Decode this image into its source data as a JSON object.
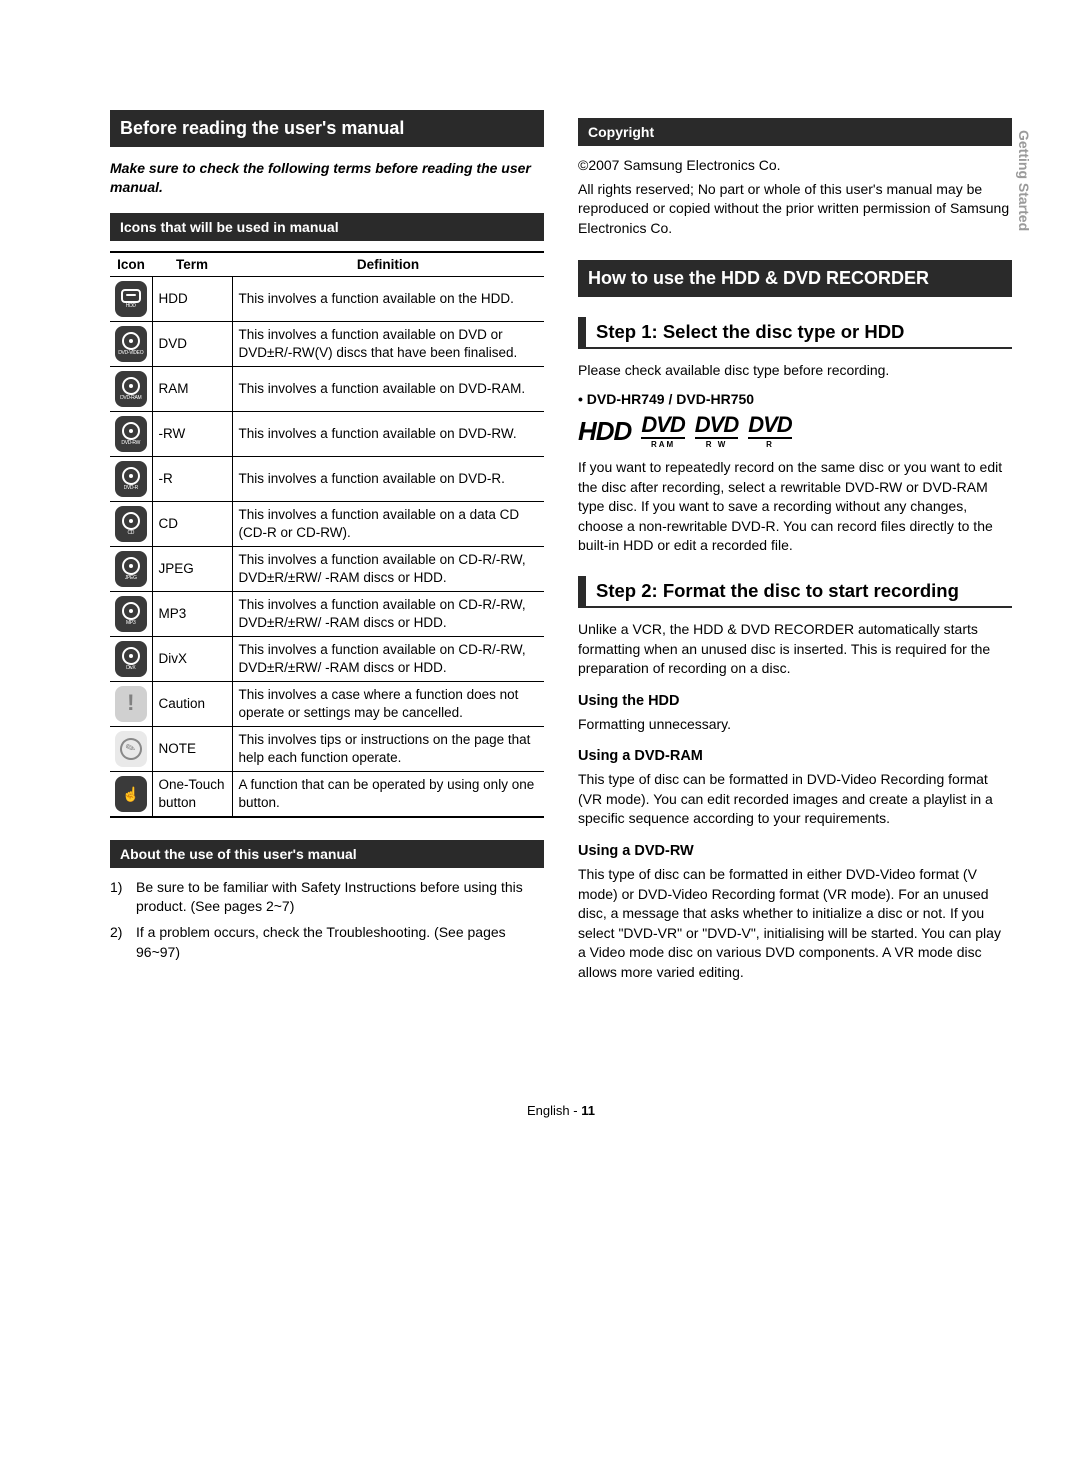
{
  "sideTab": "Getting Started",
  "left": {
    "title": "Before reading the user's manual",
    "intro": "Make sure to check the following terms before reading the user manual.",
    "iconsBar": "Icons that will be used in manual",
    "tableHead": {
      "icon": "Icon",
      "term": "Term",
      "def": "Definition"
    },
    "rows": [
      {
        "badge": "HDD",
        "term": "HDD",
        "def": "This involves a function available on the HDD."
      },
      {
        "badge": "DVD-VIDEO",
        "term": "DVD",
        "def": "This involves a function available on DVD or DVD±R/-RW(V) discs that have been finalised."
      },
      {
        "badge": "DVD-RAM",
        "term": "RAM",
        "def": "This involves a function available on DVD-RAM."
      },
      {
        "badge": "DVD-RW",
        "term": "-RW",
        "def": "This involves a function available on DVD-RW."
      },
      {
        "badge": "DVD-R",
        "term": "-R",
        "def": "This involves a function available on DVD-R."
      },
      {
        "badge": "CD",
        "term": "CD",
        "def": "This involves a function available on a data CD (CD-R or CD-RW)."
      },
      {
        "badge": "JPEG",
        "term": "JPEG",
        "def": "This involves a function available on CD-R/-RW, DVD±R/±RW/ -RAM discs or HDD."
      },
      {
        "badge": "MP3",
        "term": "MP3",
        "def": "This involves a function available on CD-R/-RW, DVD±R/±RW/ -RAM discs or HDD."
      },
      {
        "badge": "DivX",
        "term": "DivX",
        "def": "This involves a function available on CD-R/-RW, DVD±R/±RW/ -RAM discs or HDD."
      },
      {
        "badge": "!",
        "term": "Caution",
        "def": "This involves a case where a function does not operate or settings may be cancelled."
      },
      {
        "badge": "✎",
        "term": "NOTE",
        "def": "This involves tips or instructions on the page that help each function operate."
      },
      {
        "badge": "☝",
        "term": "One-Touch button",
        "def": "A function that can be operated by using only one button."
      }
    ],
    "aboutBar": "About the use of this user's manual",
    "aboutList": [
      "Be sure to be familiar with Safety Instructions before using this product. (See pages 2~7)",
      "If a problem occurs, check the Troubleshooting. (See pages 96~97)"
    ]
  },
  "right": {
    "copyrightBar": "Copyright",
    "copyright1": "©2007 Samsung Electronics Co.",
    "copyright2": "All rights reserved; No part or whole of this user's manual may be reproduced or copied without the prior written permission of Samsung Electronics Co.",
    "howTitle": "How to use the HDD & DVD RECORDER",
    "step1": "Step 1: Select the disc type or HDD",
    "step1p1": "Please check available disc type before recording.",
    "models": "DVD-HR749 / DVD-HR750",
    "logos": {
      "hdd": "HDD",
      "dvd": "DVD",
      "ram": "RAM",
      "rw": "R W",
      "r": "R"
    },
    "step1p2": "If you want to repeatedly record on the same disc or you want to edit the disc after recording, select a rewritable DVD-RW or DVD-RAM type disc. If you want to save a recording without any changes, choose a non-rewritable DVD-R. You can record files directly to the built-in HDD or edit a recorded file.",
    "step2": "Step 2: Format the disc to start recording",
    "step2p": "Unlike a VCR, the HDD & DVD RECORDER automatically starts formatting when an unused disc is inserted. This is required for the preparation of recording on a disc.",
    "useHdd": "Using the HDD",
    "useHddP": "Formatting unnecessary.",
    "useRam": "Using a DVD-RAM",
    "useRamP": "This type of disc can be formatted in DVD-Video Recording format (VR mode). You can edit recorded images and create a playlist in a specific sequence according to your requirements.",
    "useRw": "Using a DVD-RW",
    "useRwP": "This type of disc can be formatted in either DVD-Video format (V mode) or DVD-Video Recording format (VR mode). For an unused disc, a message that asks whether to initialize a disc or not. If you select \"DVD-VR\" or \"DVD-V\", initialising will be started. You can play a Video mode disc on various DVD components. A VR mode disc allows more varied editing."
  },
  "footer": {
    "lang": "English - ",
    "page": "11"
  }
}
